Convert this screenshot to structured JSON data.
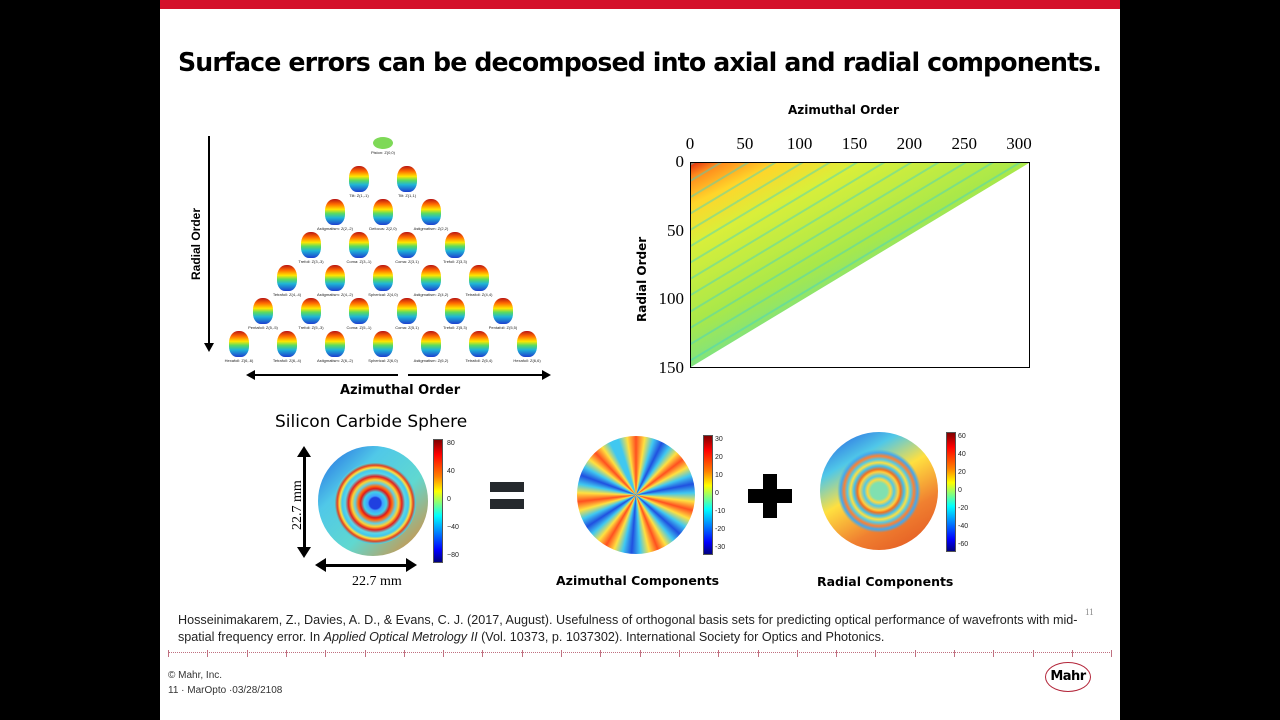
{
  "slide": {
    "title": "Surface errors can be decomposed into axial and radial components.",
    "accent_color": "#d4112b",
    "page_number": "11"
  },
  "zernike_pyramid": {
    "vertical_axis_label": "Radial Order",
    "horizontal_axis_label": "Azimuthal Order",
    "rows": [
      [
        "Piston: Z(0,0)"
      ],
      [
        "Tilt: Z(1,-1)",
        "Tilt: Z(1,1)"
      ],
      [
        "Astigmatism: Z(2,-2)",
        "Defocus: Z(2,0)",
        "Astigmatism: Z(2,2)"
      ],
      [
        "Trefoil: Z(3,-3)",
        "Coma: Z(3,-1)",
        "Coma: Z(3,1)",
        "Trefoil: Z(3,3)"
      ],
      [
        "Tetrafoil: Z(4,-4)",
        "Astigmatism: Z(4,-2)",
        "Spherical: Z(4,0)",
        "Astigmatism: Z(4,2)",
        "Tetrafoil: Z(4,4)"
      ],
      [
        "Pentafoil: Z(5,-5)",
        "Trefoil: Z(5,-3)",
        "Coma: Z(5,-1)",
        "Coma: Z(5,1)",
        "Trefoil: Z(5,3)",
        "Pentafoil: Z(5,5)"
      ],
      [
        "Hexafoil: Z(6,-6)",
        "Tetrafoil: Z(6,-4)",
        "Astigmatism: Z(6,-2)",
        "Spherical: Z(6,0)",
        "Astigmatism: Z(6,2)",
        "Tetrafoil: Z(6,4)",
        "Hexafoil: Z(6,6)"
      ]
    ]
  },
  "chart_data": [
    {
      "type": "heatmap",
      "title": "",
      "xlabel": "Azimuthal Order",
      "ylabel": "Radial Order",
      "x_ticks": [
        "0",
        "50",
        "100",
        "150",
        "200",
        "250",
        "300"
      ],
      "y_ticks": [
        "0",
        "50",
        "100",
        "150"
      ],
      "xlim": [
        0,
        310
      ],
      "ylim": [
        150,
        0
      ],
      "x_axis_position": "top",
      "description": "Triangular coefficient map; filled region bounded by diagonal from (0,150) to (310,0). Highest magnitude (red/orange) near origin, mostly yellow-green with cyan diagonal streaks elsewhere."
    },
    {
      "type": "heatmap",
      "title": "Silicon Carbide Sphere",
      "colorbar_ticks": [
        "80",
        "40",
        "0",
        "-40",
        "-80"
      ],
      "dimensions": {
        "width": "22.7 mm",
        "height": "22.7 mm"
      }
    },
    {
      "type": "heatmap",
      "title": "Azimuthal Components",
      "colorbar_ticks": [
        "30",
        "20",
        "10",
        "0",
        "-10",
        "-20",
        "-30"
      ]
    },
    {
      "type": "heatmap",
      "title": "Radial Components",
      "colorbar_ticks": [
        "60",
        "40",
        "20",
        "0",
        "-20",
        "-40",
        "-60"
      ]
    }
  ],
  "heatmap": {
    "xlabel": "Azimuthal Order",
    "ylabel": "Radial Order",
    "x_ticks": [
      "0",
      "50",
      "100",
      "150",
      "200",
      "250",
      "300"
    ],
    "y_ticks": [
      "0",
      "50",
      "100",
      "150"
    ]
  },
  "decomposition": {
    "sic_title": "Silicon Carbide Sphere",
    "dim_vertical": "22.7 mm",
    "dim_horizontal": "22.7 mm",
    "sic_ticks": [
      "80",
      "40",
      "0",
      "−40",
      "−80"
    ],
    "azimuthal_caption": "Azimuthal Components",
    "azimuthal_ticks": [
      "30",
      "20",
      "10",
      "0",
      "-10",
      "-20",
      "-30"
    ],
    "radial_caption": "Radial Components",
    "radial_ticks": [
      "60",
      "40",
      "20",
      "0",
      "-20",
      "-40",
      "-60"
    ]
  },
  "citation": {
    "part1": "Hosseinimakarem, Z., Davies, A. D., & Evans, C. J. (2017, August). Usefulness of orthogonal basis sets for predicting optical performance of wavefronts with mid-spatial frequency error. In ",
    "journal": "Applied Optical Metrology II",
    "part2": " (Vol. 10373, p. 1037302). International Society for Optics and Photonics."
  },
  "footer": {
    "copyright": "© Mahr, Inc.",
    "meta": "11 · MarOpto ·03/28/2108",
    "logo": "Mahr"
  }
}
